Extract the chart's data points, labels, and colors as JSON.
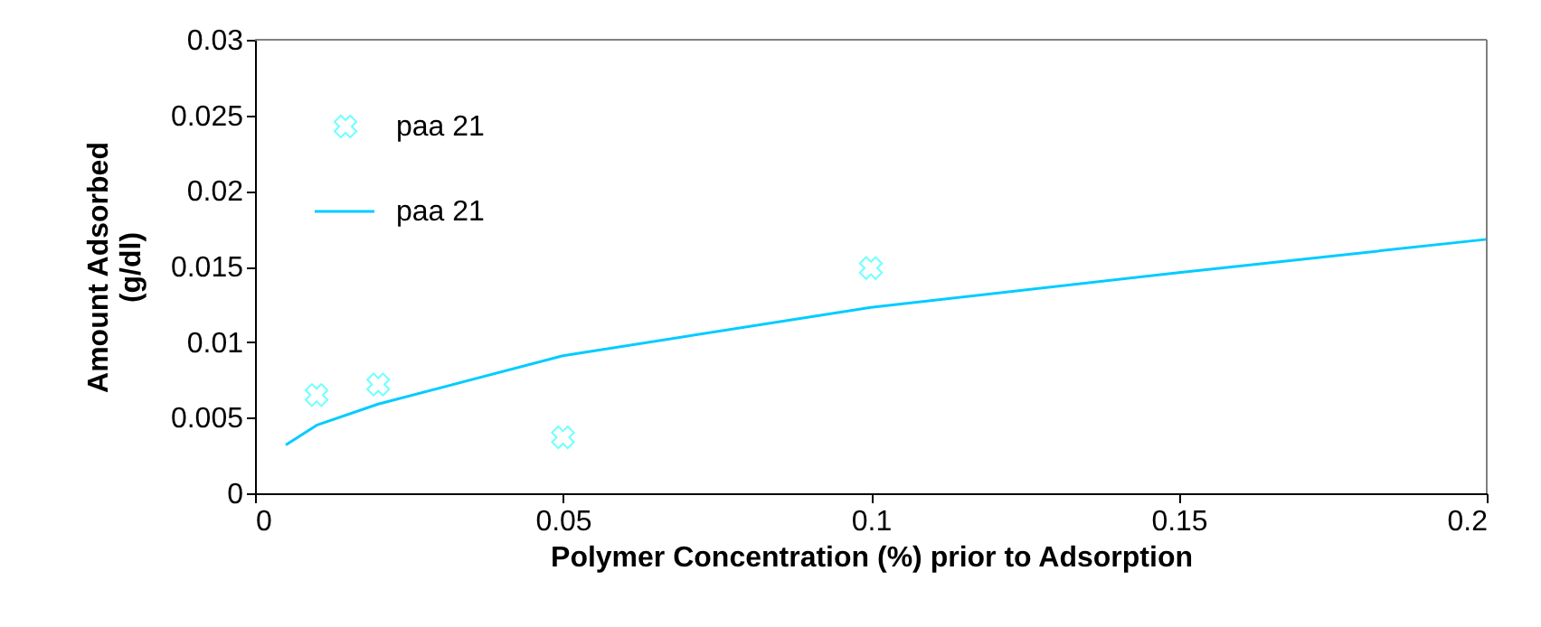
{
  "chart_data": {
    "type": "scatter",
    "xlabel": "Polymer Concentration (%) prior to Adsorption",
    "ylabel": "Amount Adsorbed (g/dl)",
    "xlim": [
      0,
      0.2
    ],
    "xticks": [
      0,
      0.05,
      0.1,
      0.15,
      0.2
    ],
    "ylim": [
      0,
      0.03
    ],
    "yticks": [
      0,
      0.005,
      0.01,
      0.015,
      0.02,
      0.025,
      0.03
    ],
    "grid": false,
    "legend": "top left",
    "series": [
      {
        "name": "paa 21",
        "marker": "cross",
        "color": "#33ffff",
        "x": [
          0.01,
          0.02,
          0.05,
          0.1
        ],
        "values": [
          0.0065,
          0.0072,
          0.0037,
          0.0149
        ]
      },
      {
        "name": "paa 21",
        "type": "line",
        "marker": "none",
        "line_style": "solid",
        "color": "#00ccff",
        "x": [
          0.005,
          0.01,
          0.02,
          0.05,
          0.1,
          0.15,
          0.2
        ],
        "values": [
          0.0032,
          0.0045,
          0.0059,
          0.0091,
          0.0123,
          0.0146,
          0.0168
        ]
      }
    ]
  }
}
